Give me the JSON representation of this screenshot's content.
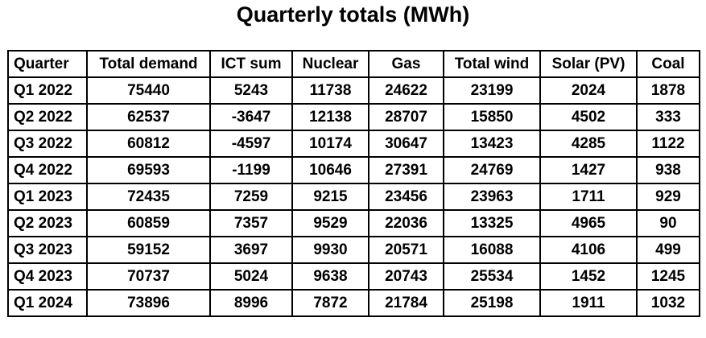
{
  "title": "Quarterly totals (MWh)",
  "table": {
    "header": [
      "Quarter",
      "Total demand",
      "ICT sum",
      "Nuclear",
      "Gas",
      "Total wind",
      "Solar (PV)",
      "Coal"
    ],
    "rows": [
      [
        "Q1 2022",
        75440,
        5243,
        11738,
        24622,
        23199,
        2024,
        1878
      ],
      [
        "Q2 2022",
        62537,
        -3647,
        12138,
        28707,
        15850,
        4502,
        333
      ],
      [
        "Q3 2022",
        60812,
        -4597,
        10174,
        30647,
        13423,
        4285,
        1122
      ],
      [
        "Q4 2022",
        69593,
        -1199,
        10646,
        27391,
        24769,
        1427,
        938
      ],
      [
        "Q1 2023",
        72435,
        7259,
        9215,
        23456,
        23963,
        1711,
        929
      ],
      [
        "Q2 2023",
        60859,
        7357,
        9529,
        22036,
        13325,
        4965,
        90
      ],
      [
        "Q3 2023",
        59152,
        3697,
        9930,
        20571,
        16088,
        4106,
        499
      ],
      [
        "Q4 2023",
        70737,
        5024,
        9638,
        20743,
        25534,
        1452,
        1245
      ],
      [
        "Q1 2024",
        73896,
        8996,
        7872,
        21784,
        25198,
        1911,
        1032
      ]
    ]
  }
}
